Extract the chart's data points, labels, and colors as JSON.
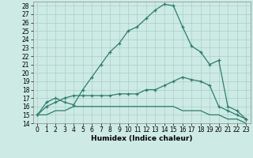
{
  "title": "",
  "xlabel": "Humidex (Indice chaleur)",
  "xlim": [
    -0.5,
    23.5
  ],
  "ylim": [
    14,
    28.5
  ],
  "xticks": [
    0,
    1,
    2,
    3,
    4,
    5,
    6,
    7,
    8,
    9,
    10,
    11,
    12,
    13,
    14,
    15,
    16,
    17,
    18,
    19,
    20,
    21,
    22,
    23
  ],
  "yticks": [
    14,
    15,
    16,
    17,
    18,
    19,
    20,
    21,
    22,
    23,
    24,
    25,
    26,
    27,
    28
  ],
  "line_color": "#2e7d6e",
  "bg_color": "#cdeae4",
  "grid_color": "#aacfc8",
  "line1_x": [
    0,
    1,
    2,
    3,
    4,
    5,
    6,
    7,
    8,
    9,
    10,
    11,
    12,
    13,
    14,
    15,
    16,
    17,
    18,
    19,
    20,
    21,
    22,
    23
  ],
  "line1_y": [
    15.0,
    16.5,
    17.0,
    16.5,
    16.2,
    18.0,
    19.5,
    21.0,
    22.5,
    23.5,
    25.0,
    25.5,
    26.5,
    27.5,
    28.2,
    28.0,
    25.5,
    23.2,
    22.5,
    21.0,
    21.5,
    16.0,
    15.5,
    14.5
  ],
  "line2_x": [
    0,
    1,
    2,
    3,
    4,
    5,
    6,
    7,
    8,
    9,
    10,
    11,
    12,
    13,
    14,
    15,
    16,
    17,
    18,
    19,
    20,
    21,
    22,
    23
  ],
  "line2_y": [
    15.0,
    16.0,
    16.5,
    17.0,
    17.3,
    17.3,
    17.3,
    17.3,
    17.3,
    17.5,
    17.5,
    17.5,
    18.0,
    18.0,
    18.5,
    19.0,
    19.5,
    19.2,
    19.0,
    18.5,
    16.0,
    15.5,
    15.0,
    14.5
  ],
  "line3_x": [
    0,
    1,
    2,
    3,
    4,
    5,
    6,
    7,
    8,
    9,
    10,
    11,
    12,
    13,
    14,
    15,
    16,
    17,
    18,
    19,
    20,
    21,
    22,
    23
  ],
  "line3_y": [
    15.0,
    15.0,
    15.5,
    15.5,
    16.0,
    16.0,
    16.0,
    16.0,
    16.0,
    16.0,
    16.0,
    16.0,
    16.0,
    16.0,
    16.0,
    16.0,
    15.5,
    15.5,
    15.5,
    15.0,
    15.0,
    14.5,
    14.5,
    14.0
  ],
  "tick_fontsize": 5.5,
  "xlabel_fontsize": 6.5,
  "marker": "+"
}
